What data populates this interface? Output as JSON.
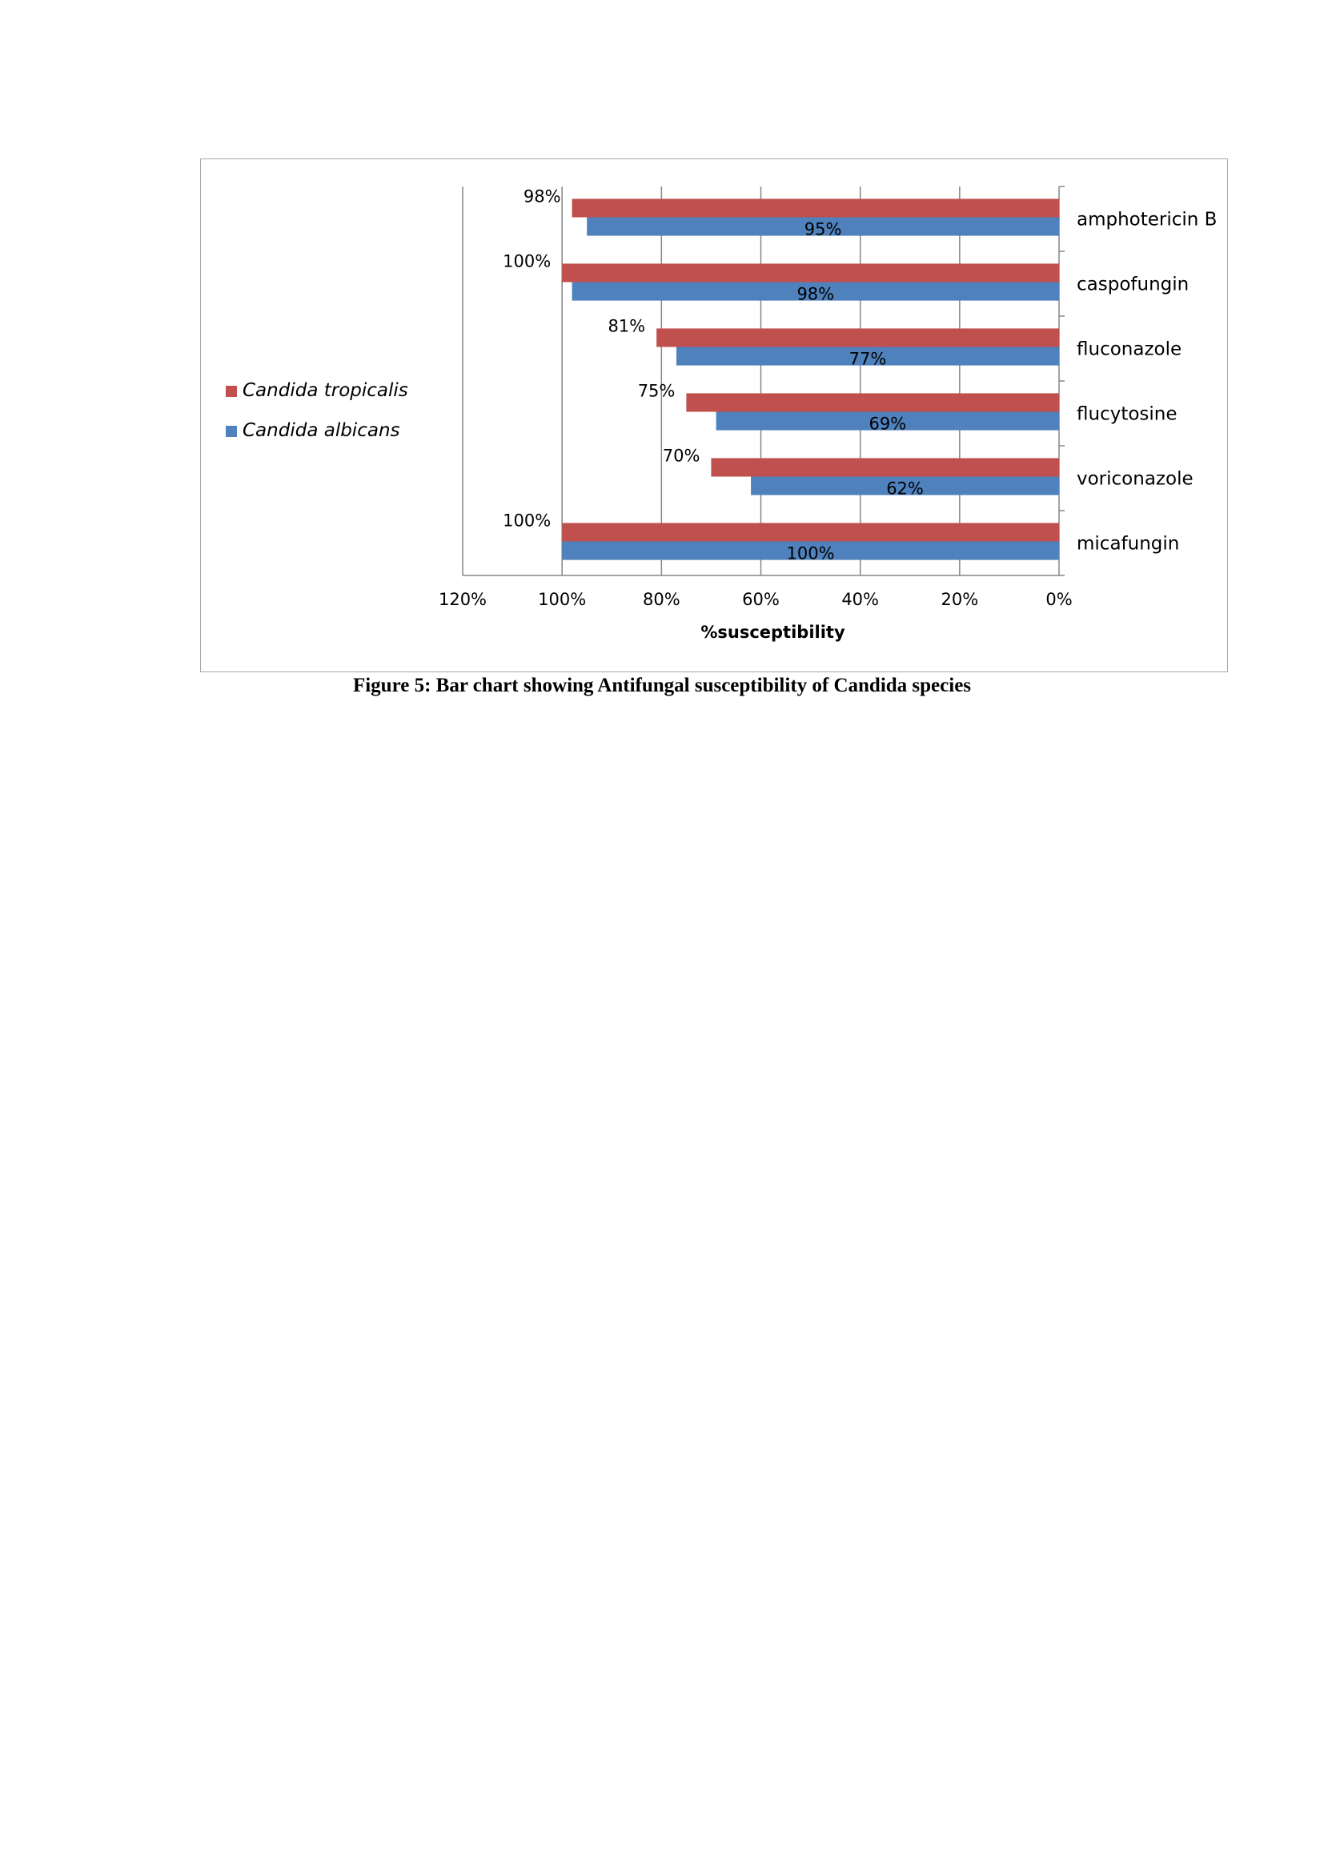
{
  "caption": "Figure 5: Bar chart showing Antifungal susceptibility of Candida species",
  "colors": {
    "tropicalis": "#c0504d",
    "albicans": "#4f81bd",
    "grid": "#868686",
    "frame": "#a6a6a6"
  },
  "chart_data": {
    "type": "bar",
    "orientation": "horizontal",
    "x_axis_reversed": true,
    "title": "",
    "xlabel": "%susceptibility",
    "ylabel": "",
    "xlim": [
      0,
      120
    ],
    "x_ticks": [
      120,
      100,
      80,
      60,
      40,
      20,
      0
    ],
    "x_tick_labels": [
      "120%",
      "100%",
      "80%",
      "60%",
      "40%",
      "20%",
      "0%"
    ],
    "categories": [
      "amphotericin B",
      "caspofungin",
      "fluconazole",
      "flucytosine",
      "voriconazole",
      "micafungin"
    ],
    "series": [
      {
        "name": "Candida tropicalis",
        "color": "#c0504d",
        "values": [
          98,
          100,
          81,
          75,
          70,
          100
        ],
        "labels": [
          "98%",
          "100%",
          "81%",
          "75%",
          "70%",
          "100%"
        ]
      },
      {
        "name": "Candida albicans",
        "color": "#4f81bd",
        "values": [
          95,
          98,
          77,
          69,
          62,
          100
        ],
        "labels": [
          "95%",
          "98%",
          "77%",
          "69%",
          "62%",
          "100%"
        ]
      }
    ],
    "grid": true,
    "legend_position": "left"
  }
}
